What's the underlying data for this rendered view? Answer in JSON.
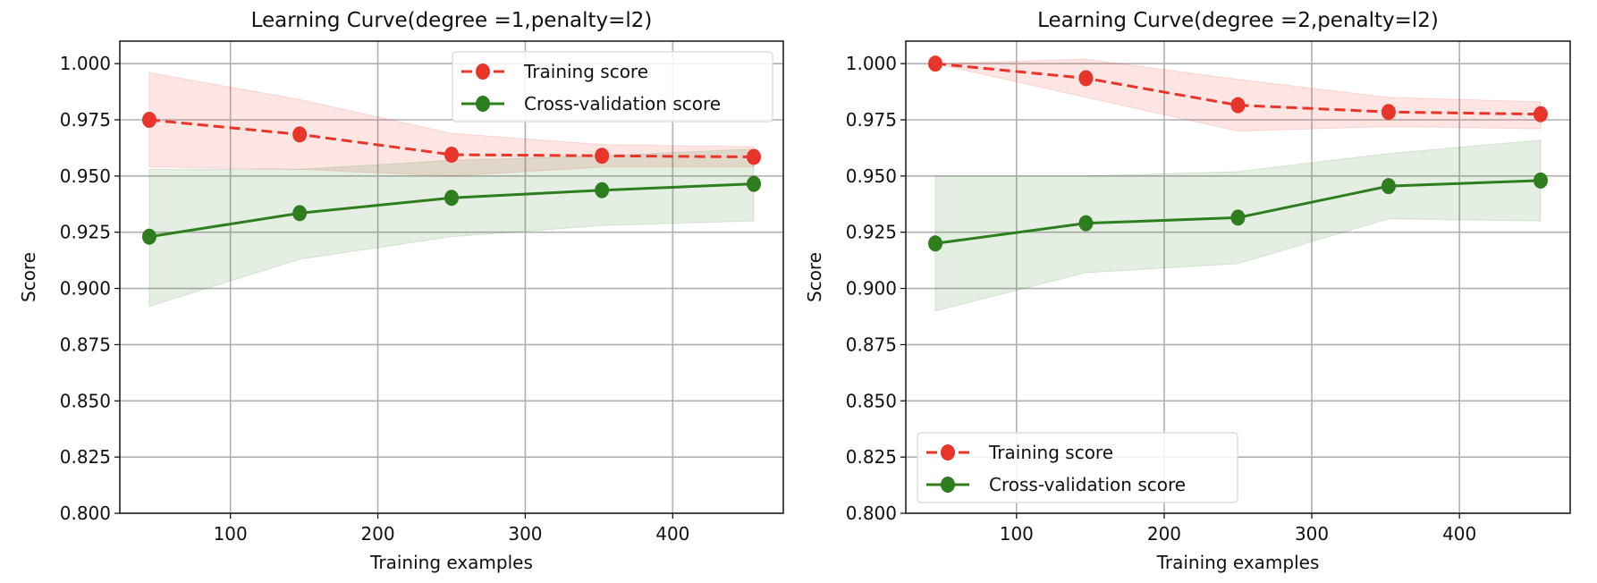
{
  "chart_data": [
    {
      "type": "line",
      "title": "Learning Curve(degree =1,penalty=l2)",
      "xlabel": "Training examples",
      "ylabel": "Score",
      "xlim": [
        25,
        475
      ],
      "ylim": [
        0.8,
        1.01
      ],
      "xticks": [
        100,
        200,
        300,
        400
      ],
      "yticks": [
        0.8,
        0.825,
        0.85,
        0.875,
        0.9,
        0.925,
        0.95,
        0.975,
        1.0
      ],
      "ytick_labels": [
        "0.800",
        "0.825",
        "0.850",
        "0.875",
        "0.900",
        "0.925",
        "0.950",
        "0.975",
        "1.000"
      ],
      "grid": true,
      "legend_position": "upper-right",
      "x": [
        45,
        147,
        250,
        352,
        455
      ],
      "series": [
        {
          "name": "Training score",
          "color": "#e8352a",
          "style": "dashed",
          "values": [
            0.975,
            0.9685,
            0.9595,
            0.959,
            0.9585
          ],
          "upper": [
            0.996,
            0.984,
            0.969,
            0.964,
            0.963
          ],
          "lower": [
            0.954,
            0.953,
            0.95,
            0.954,
            0.954
          ]
        },
        {
          "name": "Cross-validation score",
          "color": "#2e7d1f",
          "style": "solid",
          "values": [
            0.923,
            0.9335,
            0.9403,
            0.9437,
            0.9465
          ],
          "upper": [
            0.953,
            0.953,
            0.957,
            0.959,
            0.962
          ],
          "lower": [
            0.892,
            0.913,
            0.923,
            0.928,
            0.93
          ]
        }
      ]
    },
    {
      "type": "line",
      "title": "Learning Curve(degree =2,penalty=l2)",
      "xlabel": "Training examples",
      "ylabel": "Score",
      "xlim": [
        25,
        475
      ],
      "ylim": [
        0.8,
        1.01
      ],
      "xticks": [
        100,
        200,
        300,
        400
      ],
      "yticks": [
        0.8,
        0.825,
        0.85,
        0.875,
        0.9,
        0.925,
        0.95,
        0.975,
        1.0
      ],
      "ytick_labels": [
        "0.800",
        "0.825",
        "0.850",
        "0.875",
        "0.900",
        "0.925",
        "0.950",
        "0.975",
        "1.000"
      ],
      "grid": true,
      "legend_position": "lower-left",
      "x": [
        45,
        147,
        250,
        352,
        455
      ],
      "series": [
        {
          "name": "Training score",
          "color": "#e8352a",
          "style": "dashed",
          "values": [
            1.0,
            0.9935,
            0.9815,
            0.9785,
            0.9775
          ],
          "upper": [
            1.0,
            1.002,
            0.993,
            0.985,
            0.983
          ],
          "lower": [
            1.0,
            0.985,
            0.97,
            0.972,
            0.971
          ]
        },
        {
          "name": "Cross-validation score",
          "color": "#2e7d1f",
          "style": "solid",
          "values": [
            0.92,
            0.929,
            0.9315,
            0.9455,
            0.948
          ],
          "upper": [
            0.95,
            0.95,
            0.952,
            0.96,
            0.966
          ],
          "lower": [
            0.89,
            0.907,
            0.911,
            0.931,
            0.93
          ]
        }
      ]
    }
  ]
}
